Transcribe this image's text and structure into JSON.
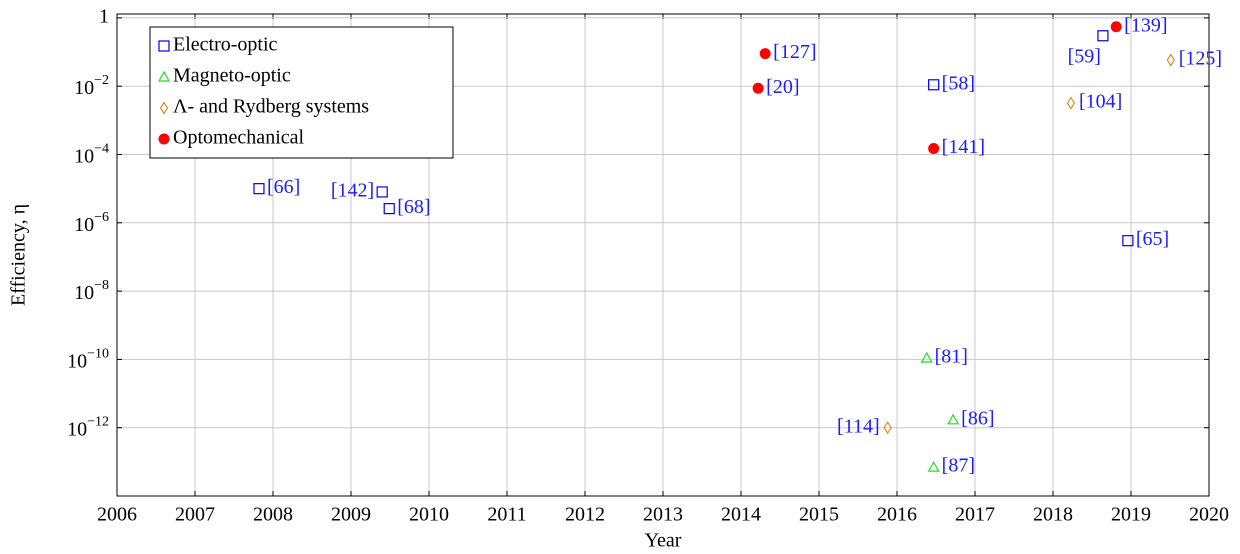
{
  "chart_data": {
    "type": "scatter",
    "x_label": "Year",
    "y_label": "Efficiency, η",
    "log_y": true,
    "grid": true,
    "legend_position": "upper left",
    "xlim": [
      2006,
      2020
    ],
    "xticks": [
      2006,
      2007,
      2008,
      2009,
      2010,
      2011,
      2012,
      2013,
      2014,
      2015,
      2016,
      2017,
      2018,
      2019,
      2020
    ],
    "ylim": [
      1e-14,
      1.3
    ],
    "yticks": [
      1,
      {
        "value": 0.01,
        "label": "10−2"
      },
      {
        "value": 0.0001,
        "label": "10−4"
      },
      {
        "value": 1e-06,
        "label": "10−6"
      },
      {
        "value": 1e-08,
        "label": "10−8"
      },
      {
        "value": 1e-10,
        "label": "10−10"
      },
      {
        "value": 1e-12,
        "label": "10−12"
      }
    ],
    "series": [
      {
        "name": "Electro-optic",
        "color": "#0000ff",
        "marker": "square",
        "x": [
          2007.82,
          2009.4,
          2009.49,
          2016.47,
          2018.64,
          2018.96
        ],
        "values": [
          1e-05,
          8e-06,
          2.6e-06,
          0.011,
          0.3,
          3e-07
        ],
        "labels": [
          "[66]",
          "[142]",
          "[68]",
          "[58]",
          "[59]",
          "[65]"
        ]
      },
      {
        "name": "Magneto-optic",
        "color": "#22dd22",
        "marker": "triangle",
        "x": [
          2016.38,
          2016.72,
          2016.47
        ],
        "values": [
          1.1e-10,
          1.7e-12,
          7e-14
        ],
        "labels": [
          "[81]",
          "[86]",
          "[87]"
        ]
      },
      {
        "name": "Λ- and Rydberg systems",
        "color": "#e08a2c",
        "marker": "diamond",
        "x": [
          2018.23,
          2019.51,
          2015.88
        ],
        "values": [
          0.0032,
          0.058,
          1e-12
        ],
        "labels": [
          "[104]",
          "[125]",
          "[114]"
        ]
      },
      {
        "name": "Optomechanical",
        "color": "#ff0000",
        "marker": "circle",
        "x": [
          2014.31,
          2014.22,
          2016.47,
          2018.81
        ],
        "values": [
          0.09,
          0.0087,
          0.00015,
          0.55
        ],
        "labels": [
          "[127]",
          "[20]",
          "[141]",
          "[139]"
        ]
      }
    ]
  }
}
